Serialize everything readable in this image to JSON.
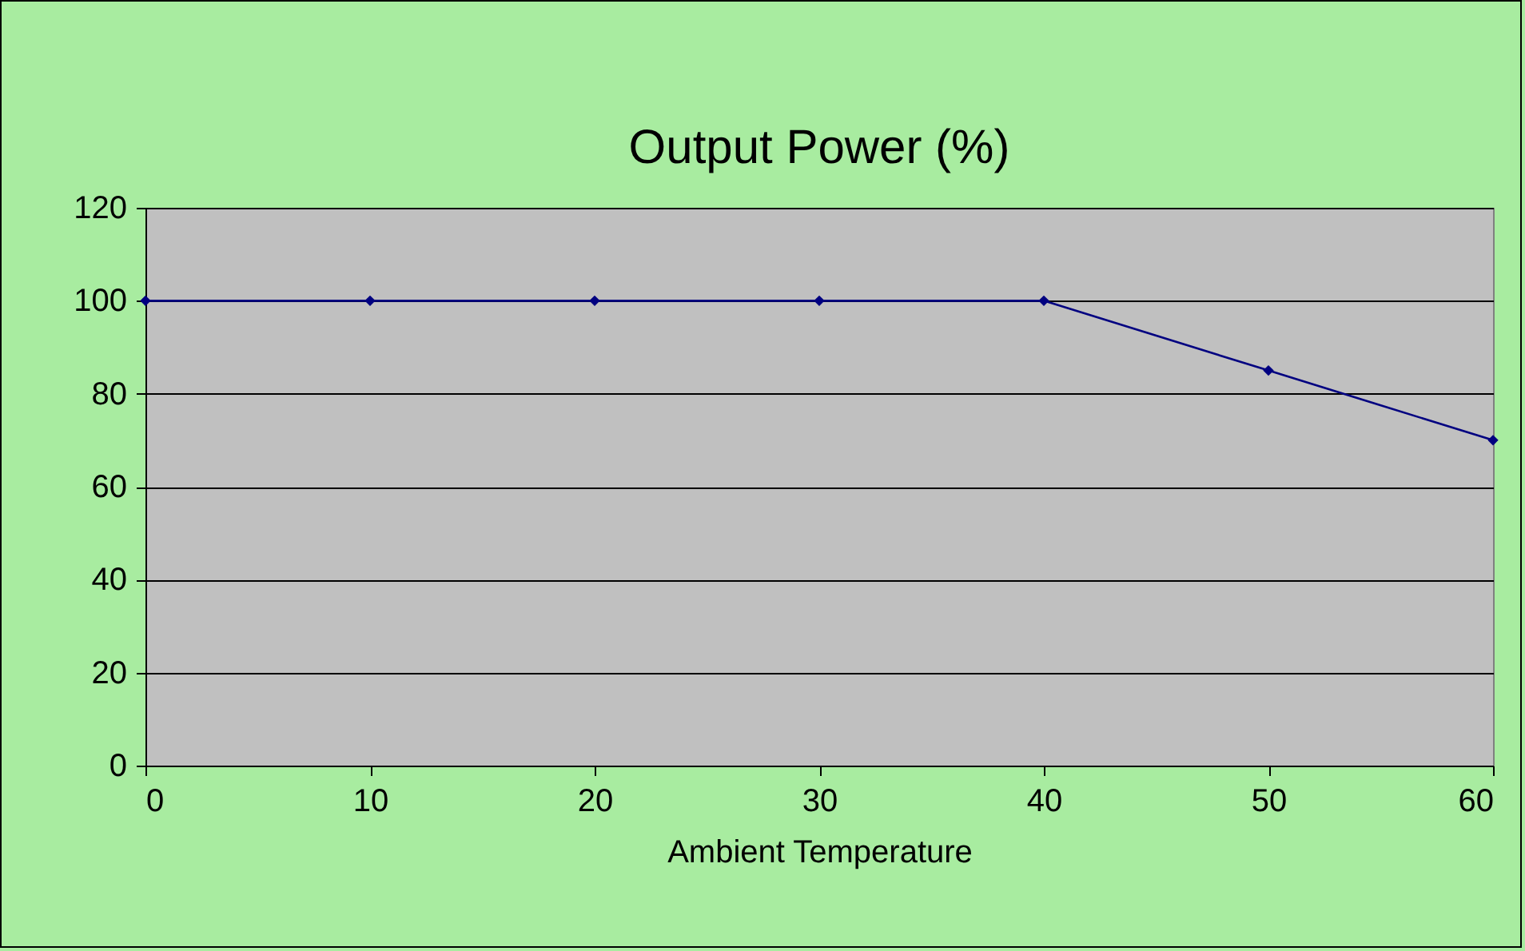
{
  "chart_data": {
    "type": "line",
    "title": "Output Power (%)",
    "xlabel": "Ambient Temperature",
    "x": [
      0,
      10,
      20,
      30,
      40,
      50,
      60
    ],
    "series": [
      {
        "color": "#000080",
        "values": [
          100,
          100,
          100,
          100,
          100,
          85,
          70
        ]
      }
    ],
    "xlim": [
      0,
      60
    ],
    "xticks": [
      0,
      10,
      20,
      30,
      40,
      50,
      60
    ],
    "ylim": [
      0,
      120
    ],
    "yticks": [
      0,
      20,
      40,
      60,
      80,
      100,
      120
    ],
    "grid": "y",
    "marker": "diamond",
    "line_style": "solid"
  }
}
